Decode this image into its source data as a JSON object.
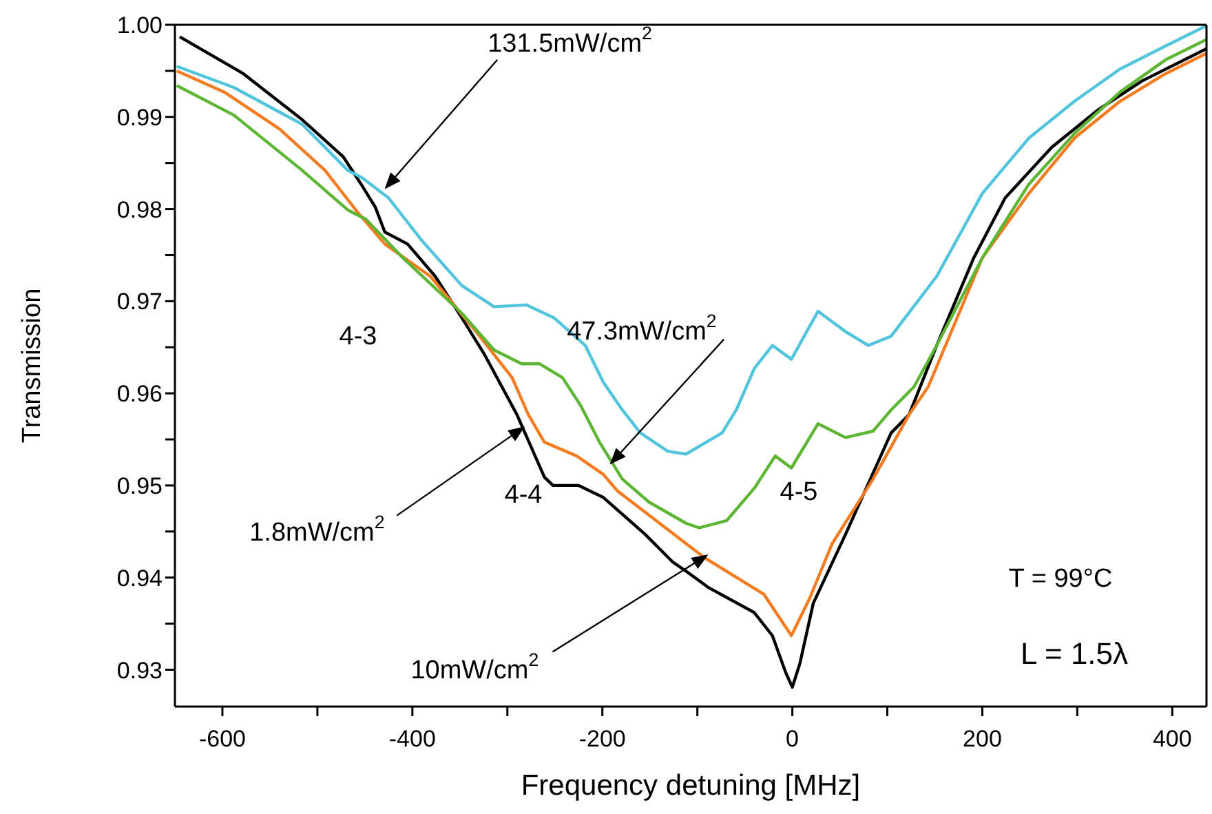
{
  "chart_data": {
    "type": "line",
    "xlabel": "Frequency detuning [MHz]",
    "ylabel": "Transmission",
    "xlim": [
      -650,
      436
    ],
    "ylim": [
      0.926,
      1.0
    ],
    "xticks": [
      -600,
      {
        "value": -500,
        "label": null
      },
      -400,
      {
        "value": -300,
        "label": null
      },
      -200,
      {
        "value": -100,
        "label": null
      },
      0,
      {
        "value": 100,
        "label": null
      },
      200,
      {
        "value": 300,
        "label": null
      },
      400
    ],
    "yticks": [
      0.93,
      {
        "value": 0.935,
        "label": null
      },
      0.94,
      {
        "value": 0.945,
        "label": null
      },
      0.95,
      {
        "value": 0.955,
        "label": null
      },
      0.96,
      {
        "value": 0.965,
        "label": null
      },
      0.97,
      {
        "value": 0.975,
        "label": null
      },
      0.98,
      {
        "value": 0.985,
        "label": null
      },
      0.99,
      {
        "value": 0.995,
        "label": null
      },
      {
        "value": 1.0,
        "label": "1.00"
      }
    ],
    "line_style": "solid",
    "series": [
      {
        "color": "#000000",
        "x": [
          -645,
          -578,
          -516,
          -473,
          -454,
          -439,
          -429,
          -405,
          -376,
          -348,
          -324,
          -290,
          -261,
          -252,
          -225,
          -199,
          -155,
          -126,
          -112,
          -88,
          -40,
          -21,
          -7,
          0,
          8,
          22,
          56,
          104,
          123,
          152,
          191,
          224,
          273,
          321,
          368,
          436
        ],
        "values": [
          0.9987,
          0.9947,
          0.9897,
          0.9857,
          0.9827,
          0.9802,
          0.9775,
          0.9762,
          0.9727,
          0.9682,
          0.9642,
          0.9577,
          0.9509,
          0.95,
          0.95,
          0.9487,
          0.9447,
          0.9417,
          0.9407,
          0.9389,
          0.9362,
          0.9337,
          0.9297,
          0.9281,
          0.9307,
          0.9372,
          0.9447,
          0.9557,
          0.9577,
          0.9652,
          0.9747,
          0.9812,
          0.9867,
          0.9907,
          0.9939,
          0.9974
        ]
      },
      {
        "color": "#f47b20",
        "x": [
          -648,
          -598,
          -540,
          -492,
          -458,
          -429,
          -381,
          -333,
          -295,
          -278,
          -261,
          -227,
          -199,
          -184,
          -112,
          -93,
          -30,
          -1,
          18,
          42,
          85,
          123,
          143,
          200,
          249,
          297,
          345,
          393,
          436
        ],
        "values": [
          0.995,
          0.9927,
          0.9887,
          0.9842,
          0.9797,
          0.9762,
          0.9727,
          0.9667,
          0.9617,
          0.9577,
          0.9547,
          0.9532,
          0.9512,
          0.9494,
          0.9437,
          0.9422,
          0.9382,
          0.9337,
          0.9377,
          0.9437,
          0.9507,
          0.9577,
          0.9607,
          0.9747,
          0.9817,
          0.9877,
          0.9917,
          0.9947,
          0.9969
        ]
      },
      {
        "color": "#5cb533",
        "x": [
          -648,
          -588,
          -516,
          -468,
          -449,
          -410,
          -348,
          -314,
          -285,
          -266,
          -242,
          -223,
          -203,
          -179,
          -151,
          -112,
          -98,
          -69,
          -40,
          -18,
          -1,
          27,
          56,
          85,
          104,
          128,
          152,
          200,
          249,
          297,
          345,
          393,
          436
        ],
        "values": [
          0.9934,
          0.9902,
          0.9842,
          0.9799,
          0.9789,
          0.9747,
          0.9687,
          0.9647,
          0.9632,
          0.9632,
          0.9617,
          0.9587,
          0.9547,
          0.9507,
          0.9482,
          0.9459,
          0.9454,
          0.9462,
          0.9497,
          0.9532,
          0.9519,
          0.9567,
          0.9552,
          0.9559,
          0.9582,
          0.9607,
          0.9652,
          0.9747,
          0.9827,
          0.9882,
          0.9927,
          0.9962,
          0.9984
        ]
      },
      {
        "color": "#4fc4dc",
        "x": [
          -648,
          -588,
          -516,
          -468,
          -453,
          -425,
          -391,
          -348,
          -314,
          -280,
          -251,
          -218,
          -199,
          -179,
          -160,
          -131,
          -112,
          -74,
          -59,
          -40,
          -21,
          -1,
          27,
          56,
          80,
          104,
          152,
          200,
          249,
          297,
          345,
          393,
          436
        ],
        "values": [
          0.9955,
          0.9932,
          0.9892,
          0.9842,
          0.9834,
          0.9812,
          0.9767,
          0.9717,
          0.9694,
          0.9696,
          0.9682,
          0.9652,
          0.9612,
          0.9582,
          0.9557,
          0.9537,
          0.9534,
          0.9557,
          0.9582,
          0.9627,
          0.9652,
          0.9637,
          0.9689,
          0.9667,
          0.9652,
          0.9662,
          0.9727,
          0.9817,
          0.9877,
          0.9917,
          0.9952,
          0.9977,
          0.9999
        ]
      }
    ],
    "annotations": [
      {
        "text": "131.5mW/cm$^{2}$",
        "x": -428,
        "y": 0.9823
      },
      {
        "text": "47.3mW/cm$^{2}$",
        "x": -191,
        "y": 0.9524
      },
      {
        "text": "1.8mW/cm$^{2}$",
        "x": -283,
        "y": 0.9563
      },
      {
        "text": "10mW/cm$^{2}$",
        "x": -90,
        "y": 0.9424
      },
      "4-3",
      "4-4",
      "4-5",
      "T = 99°C",
      "L = 1.5λ"
    ]
  }
}
